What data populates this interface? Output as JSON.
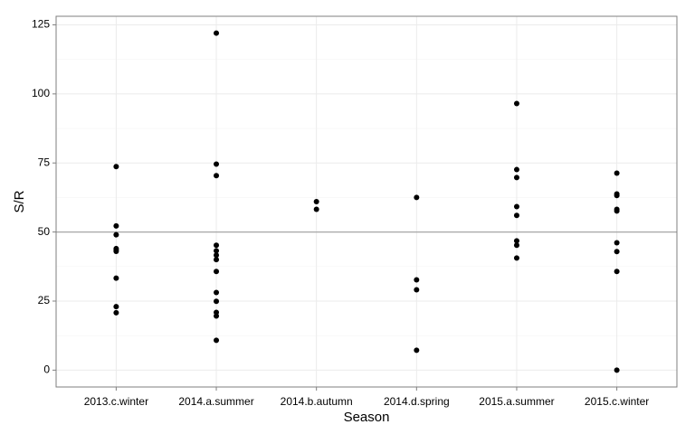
{
  "chart_data": {
    "type": "scatter",
    "x_label": "Season",
    "y_label": "S/R",
    "categories": [
      "2013.c.winter",
      "2014.a.summer",
      "2014.b.autumn",
      "2014.d.spring",
      "2015.a.summer",
      "2015.c.winter"
    ],
    "ylim": [
      -6.1,
      128.1
    ],
    "yticks": [
      0,
      25,
      50,
      75,
      100,
      125
    ],
    "grid": true,
    "reference_line": 50,
    "reference_line_color": "#a6a6a6",
    "series": [
      {
        "color": "#000000",
        "x": [
          "2013.c.winter",
          "2013.c.winter",
          "2013.c.winter",
          "2013.c.winter",
          "2013.c.winter",
          "2013.c.winter",
          "2013.c.winter",
          "2013.c.winter",
          "2013.c.winter",
          "2014.a.summer",
          "2014.a.summer",
          "2014.a.summer",
          "2014.a.summer",
          "2014.a.summer",
          "2014.a.summer",
          "2014.a.summer",
          "2014.a.summer",
          "2014.a.summer",
          "2014.a.summer",
          "2014.a.summer",
          "2014.a.summer",
          "2014.a.summer",
          "2014.b.autumn",
          "2014.b.autumn",
          "2014.d.spring",
          "2014.d.spring",
          "2014.d.spring",
          "2014.d.spring",
          "2015.a.summer",
          "2015.a.summer",
          "2015.a.summer",
          "2015.a.summer",
          "2015.a.summer",
          "2015.a.summer",
          "2015.a.summer",
          "2015.a.summer",
          "2015.c.winter",
          "2015.c.winter",
          "2015.c.winter",
          "2015.c.winter",
          "2015.c.winter",
          "2015.c.winter",
          "2015.c.winter",
          "2015.c.winter",
          "2015.c.winter"
        ],
        "values": [
          73.7,
          52.2,
          49,
          44,
          43.5,
          43,
          33.3,
          23,
          20.8,
          122,
          74.6,
          70.4,
          45.2,
          43.2,
          41.6,
          40,
          35.7,
          28.1,
          24.9,
          20.9,
          19.6,
          10.8,
          61,
          58.2,
          62.5,
          32.7,
          29.1,
          7.2,
          96.5,
          72.6,
          69.7,
          59.2,
          56,
          46.8,
          45.2,
          40.6,
          71.3,
          63.8,
          63.2,
          58.2,
          57.6,
          46.1,
          42.9,
          35.7,
          0
        ]
      }
    ]
  }
}
